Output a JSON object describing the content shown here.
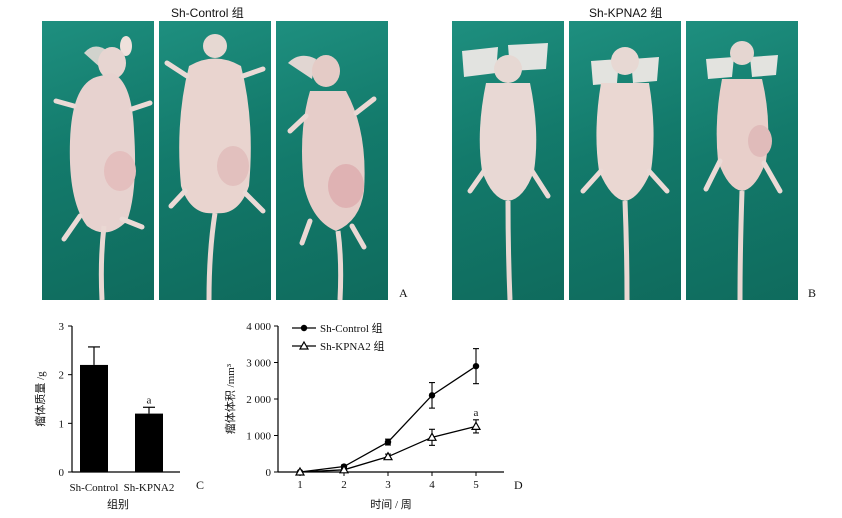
{
  "figure": {
    "group_a_title": "Sh-Control 组",
    "group_b_title": "Sh-KPNA2 组",
    "label_a": "A",
    "label_b": "B",
    "label_c": "C",
    "label_d": "D",
    "photo_background_color": "#137a6b",
    "mouse_color": "#e8d4cf"
  },
  "chart_data": [
    {
      "type": "bar",
      "panel": "C",
      "categories": [
        "Sh-Control",
        "Sh-KPNA2"
      ],
      "values": [
        2.2,
        1.2
      ],
      "errors": [
        0.37,
        0.13
      ],
      "significance": [
        "",
        "a"
      ],
      "ylabel": "瘤体质量 /g",
      "xlabel": "组别",
      "ylim": [
        0,
        3
      ],
      "yticks": [
        "0",
        "1",
        "2",
        "3"
      ],
      "bar_color": "#000000"
    },
    {
      "type": "line",
      "panel": "D",
      "x": [
        1,
        2,
        3,
        4,
        5
      ],
      "xticks": [
        "1",
        "2",
        "3",
        "4",
        "5"
      ],
      "series": [
        {
          "name": "Sh-Control 组",
          "marker": "circle-filled",
          "values": [
            0,
            150,
            820,
            2100,
            2900
          ],
          "errors": [
            20,
            40,
            80,
            350,
            480
          ],
          "significance": [
            "",
            "",
            "",
            "",
            ""
          ]
        },
        {
          "name": "Sh-KPNA2 组",
          "marker": "triangle-open",
          "values": [
            0,
            60,
            420,
            950,
            1250
          ],
          "errors": [
            10,
            30,
            70,
            220,
            180
          ],
          "significance": [
            "",
            "",
            "",
            "",
            "a"
          ]
        }
      ],
      "ylabel": "瘤体体积 /mm³",
      "xlabel": "时间 / 周",
      "ylim": [
        0,
        4000
      ],
      "yticks": [
        "0",
        "1 000",
        "2 000",
        "3 000",
        "4 000"
      ],
      "legend_position": "top-left"
    }
  ]
}
